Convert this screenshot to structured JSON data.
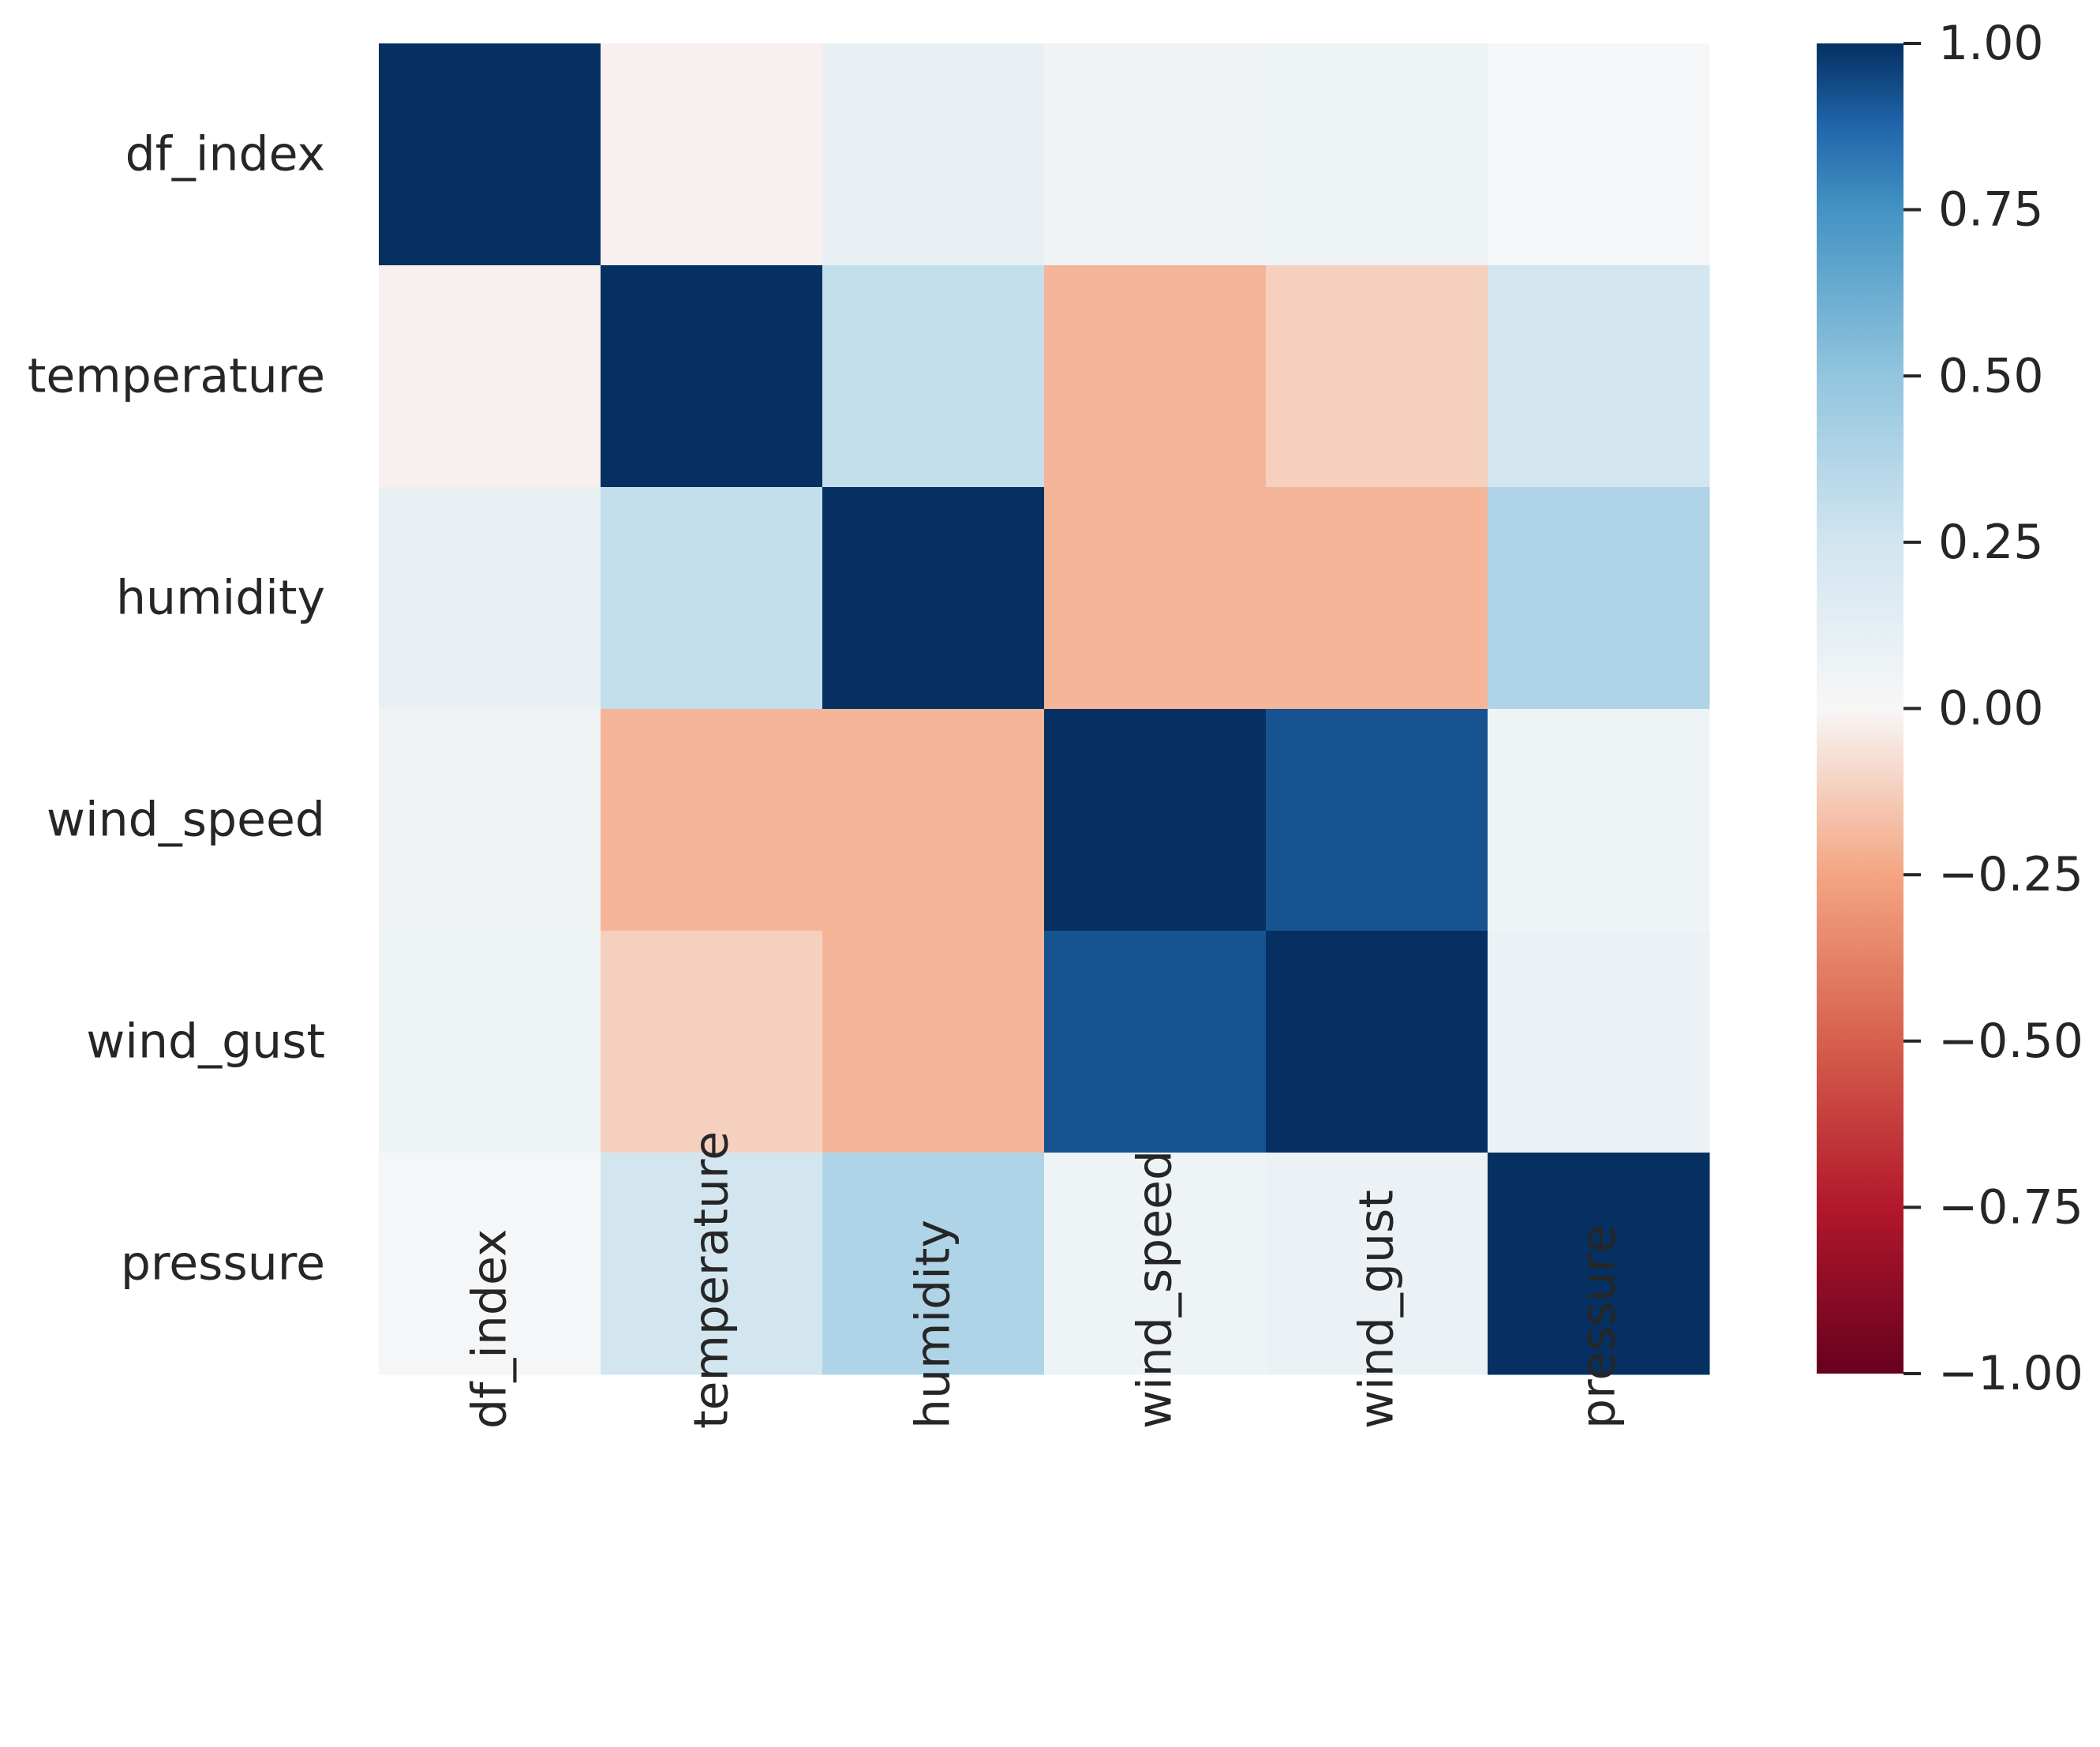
{
  "chart_data": {
    "type": "heatmap",
    "title": "",
    "xlabel": "",
    "ylabel": "",
    "row_labels": [
      "df_index",
      "temperature",
      "humidity",
      "wind_speed",
      "wind_gust",
      "pressure"
    ],
    "col_labels": [
      "df_index",
      "temperature",
      "humidity",
      "wind_speed",
      "wind_gust",
      "pressure"
    ],
    "values": [
      [
        1.0,
        -0.02,
        0.1,
        0.05,
        0.06,
        0.01
      ],
      [
        -0.02,
        1.0,
        0.3,
        -0.2,
        -0.12,
        0.24
      ],
      [
        0.1,
        0.3,
        1.0,
        -0.2,
        -0.2,
        0.38
      ],
      [
        0.05,
        -0.2,
        -0.2,
        1.0,
        0.92,
        0.06
      ],
      [
        0.06,
        -0.12,
        -0.2,
        0.92,
        1.0,
        0.08
      ],
      [
        0.01,
        0.24,
        0.38,
        0.06,
        0.08,
        1.0
      ]
    ],
    "colormap": "RdBu",
    "vmin": -1.0,
    "vmax": 1.0,
    "colorbar": {
      "ticks": [
        1.0,
        0.75,
        0.5,
        0.25,
        0.0,
        -0.25,
        -0.5,
        -0.75,
        -1.0
      ],
      "tick_labels": [
        "1.00",
        "0.75",
        "0.50",
        "0.25",
        "0.00",
        "−0.25",
        "−0.50",
        "−0.75",
        "−1.00"
      ],
      "placement": "right"
    },
    "colors": {
      "high": "#053061",
      "mid": "#f7f7f7",
      "low": "#67001f"
    }
  }
}
